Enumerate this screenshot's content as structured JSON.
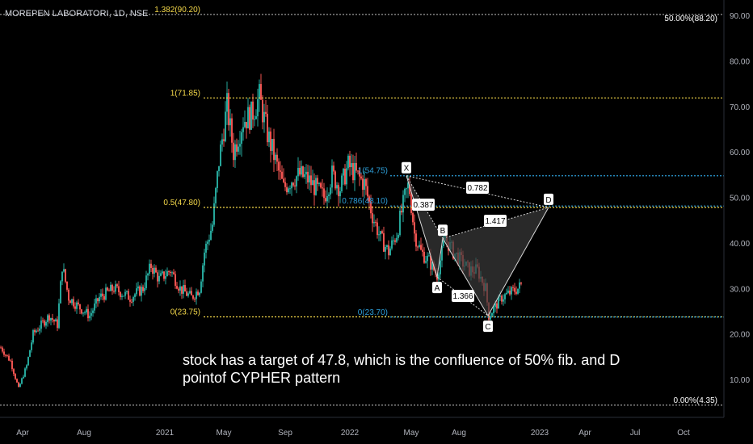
{
  "symbol_title": "MOREPEN LABORATORI, 1D, NSE",
  "note": {
    "line1": "stock has a target of 47.8, which is the confluence of 50% fib. and D",
    "line2": "pointof CYPHER pattern"
  },
  "colors": {
    "background": "#000000",
    "candle_up": "#26a69a",
    "candle_down": "#ef5350",
    "fib_yellow": "#f5d94a",
    "fib_blue": "#2d9ed8",
    "axis_text": "#b2b5be",
    "pattern_fill": "#3a3a3a",
    "pattern_line": "#d8d8d8",
    "fib_gray": "#9a9a9a"
  },
  "chart_data": {
    "type": "candlestick",
    "price_axis": {
      "ticks": [
        "10.00",
        "20.00",
        "30.00",
        "40.00",
        "50.00",
        "60.00",
        "70.00",
        "80.00",
        "90.00"
      ],
      "range": [
        0,
        92
      ]
    },
    "time_axis": {
      "ticks": [
        "Apr",
        "Aug",
        "2021",
        "May",
        "Sep",
        "2022",
        "May",
        "Aug",
        "2023",
        "Apr",
        "Jul",
        "Oct"
      ]
    },
    "price_path": [
      [
        0,
        17
      ],
      [
        12,
        14
      ],
      [
        22,
        8
      ],
      [
        32,
        13
      ],
      [
        40,
        20
      ],
      [
        50,
        22
      ],
      [
        60,
        24
      ],
      [
        70,
        22
      ],
      [
        76,
        35
      ],
      [
        84,
        28
      ],
      [
        96,
        26
      ],
      [
        110,
        24
      ],
      [
        122,
        28
      ],
      [
        140,
        30
      ],
      [
        160,
        28
      ],
      [
        176,
        30
      ],
      [
        186,
        35
      ],
      [
        196,
        32
      ],
      [
        210,
        34
      ],
      [
        222,
        30
      ],
      [
        236,
        28
      ],
      [
        246,
        30
      ],
      [
        252,
        38
      ],
      [
        262,
        44
      ],
      [
        270,
        58
      ],
      [
        280,
        70
      ],
      [
        288,
        60
      ],
      [
        300,
        67
      ],
      [
        310,
        68
      ],
      [
        320,
        72
      ],
      [
        330,
        64
      ],
      [
        340,
        58
      ],
      [
        350,
        52
      ],
      [
        360,
        54
      ],
      [
        370,
        55
      ],
      [
        380,
        54
      ],
      [
        390,
        52
      ],
      [
        400,
        50
      ],
      [
        410,
        55
      ],
      [
        420,
        52
      ],
      [
        430,
        57
      ],
      [
        440,
        55
      ],
      [
        450,
        53
      ],
      [
        460,
        46
      ],
      [
        470,
        41
      ],
      [
        480,
        38
      ],
      [
        490,
        42
      ],
      [
        500,
        50
      ],
      [
        505,
        53
      ],
      [
        512,
        42
      ],
      [
        520,
        38
      ],
      [
        530,
        36
      ],
      [
        540,
        33
      ],
      [
        545,
        37
      ],
      [
        550,
        41
      ],
      [
        560,
        38
      ],
      [
        570,
        36
      ],
      [
        580,
        34
      ],
      [
        590,
        34
      ],
      [
        600,
        30
      ],
      [
        604,
        24
      ],
      [
        612,
        26
      ],
      [
        620,
        28
      ],
      [
        630,
        29
      ],
      [
        640,
        30
      ],
      [
        645,
        31
      ]
    ],
    "fib_left": [
      {
        "label": "1.382(90.20)",
        "value": 90.2
      },
      {
        "label": "1(71.85)",
        "value": 71.85
      },
      {
        "label": "0.5(47.80)",
        "value": 47.8
      },
      {
        "label": "0(23.75)",
        "value": 23.75
      }
    ],
    "fib_right": [
      {
        "label": "50.00%(88.20)",
        "value": 88.2
      },
      {
        "label": "0.00%(4.35)",
        "value": 4.35
      }
    ],
    "fib_mid": [
      {
        "label": "1(54.75)",
        "value": 54.75
      },
      {
        "label": "0.786(48.10)",
        "value": 48.1
      },
      {
        "label": "0(23.70)",
        "value": 23.7
      }
    ],
    "pattern": {
      "points": [
        {
          "label": "X",
          "value": 54.75
        },
        {
          "label": "A",
          "value": 32.5
        },
        {
          "label": "B",
          "value": 41.0
        },
        {
          "label": "C",
          "value": 24.0
        },
        {
          "label": "D",
          "value": 47.8
        }
      ],
      "ratios": [
        "0.387",
        "0.782",
        "1.417",
        "1.366"
      ]
    }
  }
}
